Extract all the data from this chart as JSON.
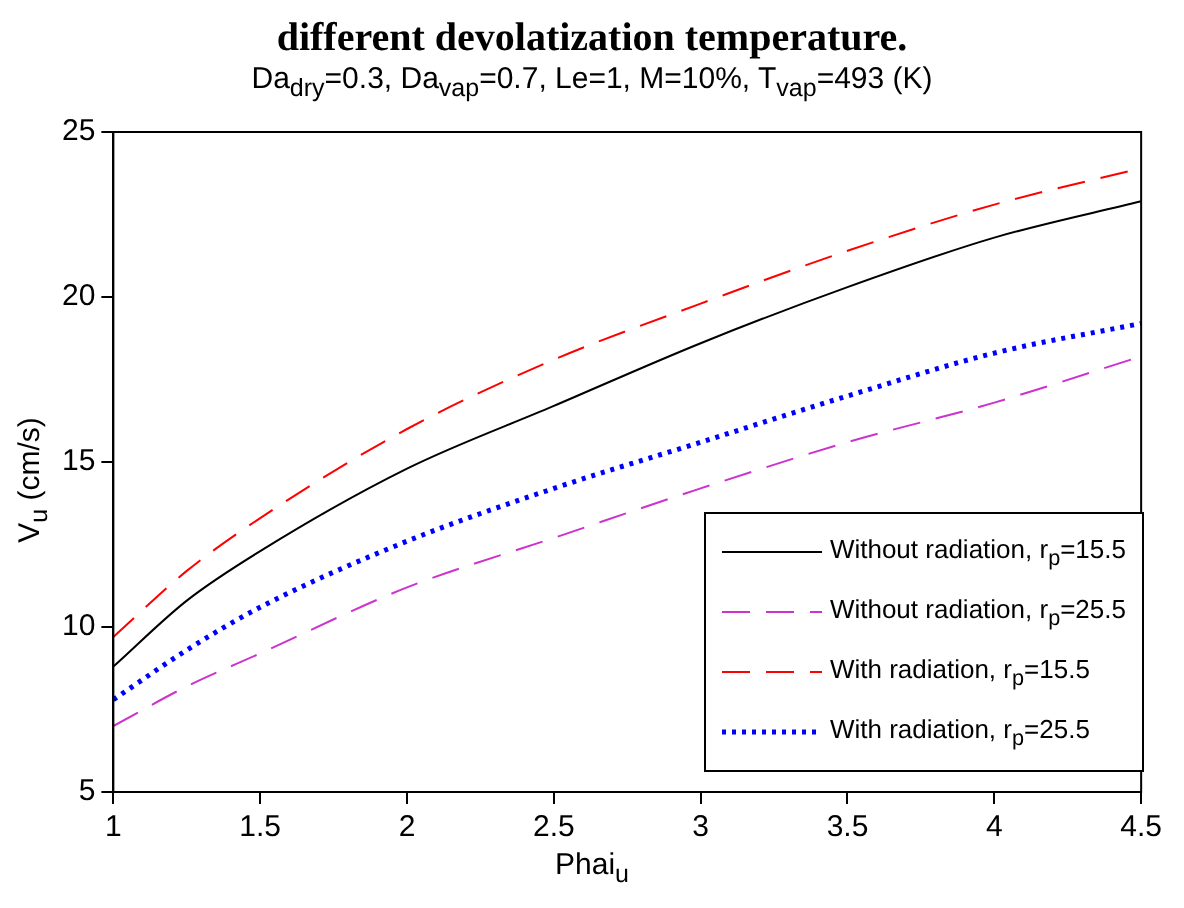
{
  "chart_data": {
    "type": "line",
    "title": "different devolatization temperature.",
    "subtitle": "Da$_{dry}$=0.3, Da$_{vap}$=0.7, Le=1, M=10%, T$_{vap}$=493 (K)",
    "xlabel": "Phai$_{u}$",
    "ylabel": "V$_{u}$ (cm/s)",
    "x": [
      1,
      1.25,
      1.5,
      2,
      2.5,
      3,
      3.5,
      4,
      4.5
    ],
    "series": [
      {
        "name": "Without radiation, r$_{p}$=15.5",
        "color": "#000000",
        "line_style": "solid",
        "values": [
          8.8,
          10.8,
          12.3,
          14.8,
          16.7,
          18.6,
          20.3,
          21.8,
          22.9
        ]
      },
      {
        "name": "Without radiation, r$_{p}$=25.5",
        "color": "#cc33cc",
        "line_style": "dashed",
        "values": [
          7.0,
          8.2,
          9.2,
          11.2,
          12.7,
          14.2,
          15.6,
          16.8,
          18.2
        ]
      },
      {
        "name": "With radiation, r$_{p}$=15.5",
        "color": "#ff0000",
        "line_style": "dashed",
        "values": [
          9.7,
          11.7,
          13.3,
          16.0,
          18.1,
          19.8,
          21.4,
          22.8,
          23.9
        ]
      },
      {
        "name": "With radiation, r$_{p}$=25.5",
        "color": "#0000ff",
        "line_style": "dotted",
        "values": [
          7.8,
          9.3,
          10.6,
          12.6,
          14.2,
          15.6,
          17.0,
          18.3,
          19.2
        ]
      }
    ],
    "xlim": [
      1,
      4.5
    ],
    "xticks": [
      1,
      1.5,
      2,
      2.5,
      3,
      3.5,
      4,
      4.5
    ],
    "ylim": [
      5,
      25
    ],
    "yticks": [
      5,
      10,
      15,
      20,
      25
    ],
    "grid": false,
    "legend": "bottom right",
    "marker": "none"
  }
}
